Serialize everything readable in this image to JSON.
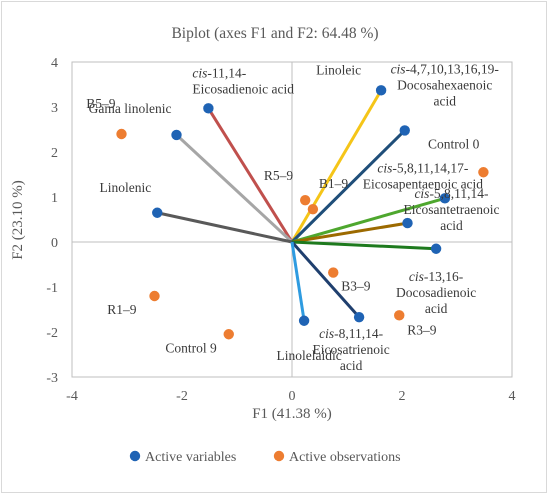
{
  "chart_data": {
    "type": "scatter",
    "title": "Biplot (axes F1 and F2: 64.48 %)",
    "xlabel": "F1 (41.38 %)",
    "ylabel": "F2 (23.10 %)",
    "xlim": [
      -4,
      4
    ],
    "ylim": [
      -3,
      4
    ],
    "xticks": [
      "-4",
      "-2",
      "0",
      "2",
      "4"
    ],
    "yticks": [
      "-3",
      "-2",
      "-1",
      "0",
      "1",
      "2",
      "3",
      "4"
    ],
    "grid": false,
    "legend_position": "bottom",
    "series": [
      {
        "name": "Active variables",
        "color": "#1f63b4",
        "points": [
          {
            "x": 1.62,
            "y": 3.37,
            "label": "Linoleic",
            "color": "#f5c518"
          },
          {
            "x": -1.52,
            "y": 2.97,
            "label_prefix": "cis",
            "label": "-11,14-",
            "label2": "Eicosadienoic acid",
            "color": "#c0504d"
          },
          {
            "x": -2.1,
            "y": 2.38,
            "label": "Gama linolenic",
            "color": "#a6a6a6"
          },
          {
            "x": -2.45,
            "y": 0.65,
            "label": "Linolenic",
            "color": "#595959"
          },
          {
            "x": 2.05,
            "y": 2.48,
            "label_prefix": "cis",
            "label": "-4,7,10,13,16,19-",
            "label2": "Docosahexaenoic",
            "label3": "acid",
            "color": "#1f4e79"
          },
          {
            "x": 2.78,
            "y": 0.97,
            "label_prefix": "cis",
            "label": "-5,8,11,14,17-",
            "label2": "Eicosapentaenoic acid",
            "color": "#4ea72e"
          },
          {
            "x": 2.1,
            "y": 0.42,
            "label_prefix": "cis",
            "label": "-5,8,11,14-",
            "label2": "Eicosantetraenoic",
            "label3": "acid",
            "color": "#9c6a00"
          },
          {
            "x": 2.62,
            "y": -0.15,
            "label_prefix": "cis",
            "label": "-13,16-",
            "label2": "Docosadienoic",
            "label3": "acid",
            "color": "#1e7a1e"
          },
          {
            "x": 1.22,
            "y": -1.67,
            "label_prefix": "cis",
            "label": "-8,11,14-",
            "label2": "Eicosatrienoic",
            "label3": "acid",
            "color": "#1f3f6e"
          },
          {
            "x": 0.22,
            "y": -1.75,
            "label": "Linolelaidic",
            "color": "#2e9be0"
          }
        ]
      },
      {
        "name": "Active observations",
        "color": "#ed7d31",
        "points": [
          {
            "x": -3.1,
            "y": 2.4,
            "label": "B5–9"
          },
          {
            "x": 3.48,
            "y": 1.55,
            "label": "Control 0"
          },
          {
            "x": 0.24,
            "y": 0.93,
            "label": "R5–9"
          },
          {
            "x": 0.38,
            "y": 0.73,
            "label": "B1–9"
          },
          {
            "x": 0.75,
            "y": -0.68,
            "label": "B3–9"
          },
          {
            "x": 1.95,
            "y": -1.63,
            "label": "R3–9"
          },
          {
            "x": -2.5,
            "y": -1.2,
            "label": "R1–9"
          },
          {
            "x": -1.15,
            "y": -2.05,
            "label": "Control 9"
          }
        ]
      }
    ]
  }
}
